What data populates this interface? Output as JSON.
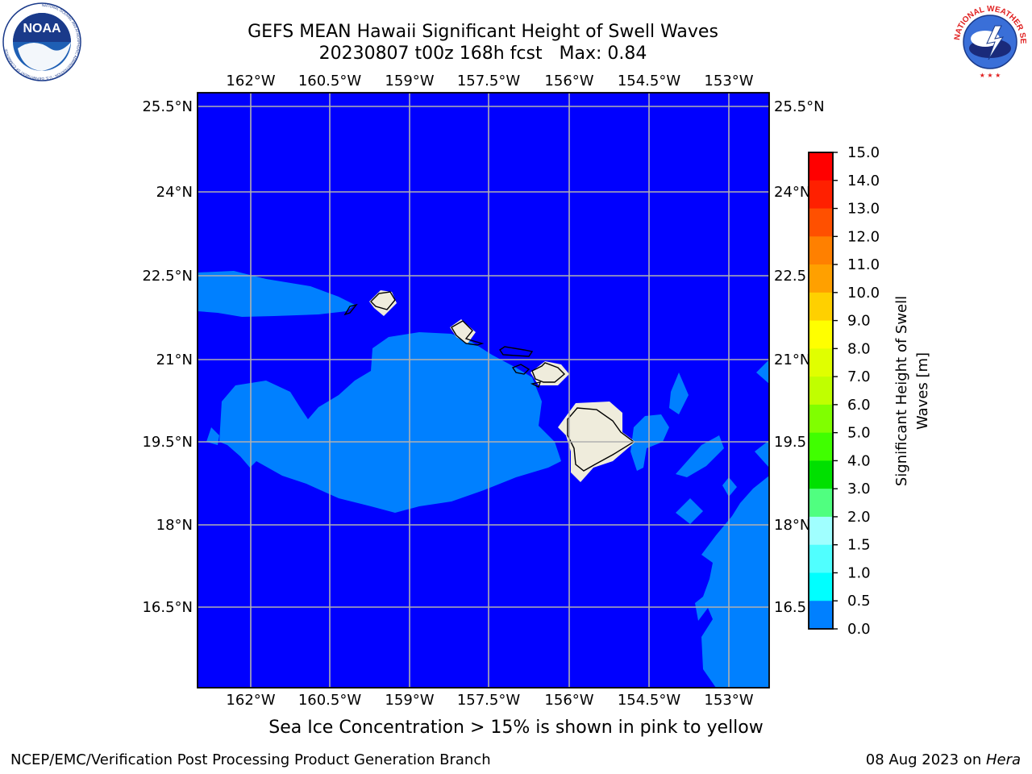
{
  "header": {
    "title_line1": "GEFS MEAN Hawaii Significant Height of Swell Waves",
    "title_line2": "20230807 t00z 168h fcst   Max: 0.84"
  },
  "logos": {
    "left": {
      "name": "noaa-logo",
      "text": "NOAA",
      "ring_text": "NATIONAL OCEANIC AND ATMOSPHERIC ADMINISTRATION · U.S. DEPARTMENT OF COMMERCE"
    },
    "right": {
      "name": "nws-logo",
      "ring_text": "NATIONAL WEATHER SERVICE"
    }
  },
  "map": {
    "lon_ticks": [
      "162°W",
      "160.5°W",
      "159°W",
      "157.5°W",
      "156°W",
      "154.5°W",
      "153°W"
    ],
    "lat_ticks_left": [
      "25.5°N",
      "24°N",
      "22.5°N",
      "21°N",
      "19.5°N",
      "18°N",
      "16.5°N"
    ],
    "lat_ticks_right": [
      "25.5°N",
      "24°N",
      "22.5",
      "21°N",
      "19.5",
      "18°N",
      "16.5"
    ],
    "colors": {
      "ocean_low": "#0000ff",
      "ocean_mid": "#0080ff",
      "land": "#efecdc",
      "grid": "#b0b0b0"
    }
  },
  "colorbar": {
    "label": "Significant Height of Swell Waves [m]",
    "ticks": [
      "15.0",
      "14.0",
      "13.0",
      "12.0",
      "11.0",
      "10.0",
      "9.0",
      "8.0",
      "7.0",
      "6.0",
      "5.0",
      "4.0",
      "3.0",
      "2.0",
      "1.5",
      "1.0",
      "0.5",
      "0.0"
    ],
    "colors": [
      "#ff0000",
      "#ff2000",
      "#ff5000",
      "#ff8000",
      "#ffa000",
      "#ffd000",
      "#ffff00",
      "#e0ff00",
      "#c0ff00",
      "#80ff00",
      "#40ff00",
      "#00e000",
      "#50ff80",
      "#a0ffff",
      "#50ffff",
      "#00ffff",
      "#0080ff",
      "#0000ff"
    ]
  },
  "caption": "Sea Ice Concentration > 15% is shown in pink to yellow",
  "footer": {
    "left": "NCEP/EMC/Verification Post Processing Product Generation Branch",
    "right_date": "08 Aug 2023 on ",
    "right_host": "Hera"
  }
}
